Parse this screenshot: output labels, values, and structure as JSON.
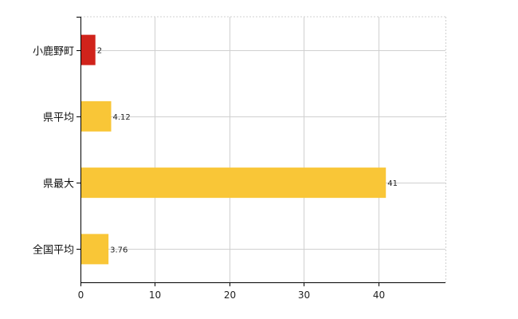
{
  "chart_data": {
    "type": "bar",
    "orientation": "horizontal",
    "categories": [
      "小鹿野町",
      "県平均",
      "県最大",
      "全国平均"
    ],
    "values": [
      2,
      4.12,
      41,
      3.76
    ],
    "data_labels": [
      "2",
      "4.12",
      "41",
      "3.76"
    ],
    "bar_colors": [
      "#d0231b",
      "#f9c637",
      "#f9c637",
      "#f9c637"
    ],
    "xlim": [
      0,
      49
    ],
    "xticks": [
      0,
      10,
      20,
      30,
      40
    ],
    "grid": true,
    "gridline_color": "#d0d0d0",
    "axis_color": "#000000"
  }
}
